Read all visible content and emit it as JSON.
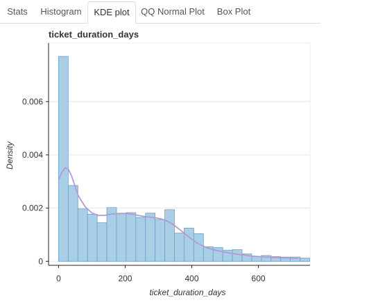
{
  "tabs": [
    {
      "label": "Stats",
      "active": false
    },
    {
      "label": "Histogram",
      "active": false
    },
    {
      "label": "KDE plot",
      "active": true
    },
    {
      "label": "QQ Normal Plot",
      "active": false
    },
    {
      "label": "Box Plot",
      "active": false
    }
  ],
  "colors": {
    "bar_fill": "#a9cfe6",
    "bar_stroke": "#6a9fcb",
    "kde_line": "#b39ad3",
    "grid": "#e6e6e6"
  },
  "chart_data": {
    "type": "bar",
    "title": "ticket_duration_days",
    "xlabel": "ticket_duration_days",
    "ylabel": "Density",
    "xlim": [
      -30,
      755
    ],
    "ylim": [
      -0.00015,
      0.0082
    ],
    "xticks": [
      0,
      200,
      400,
      600
    ],
    "yticks": [
      0,
      0.002,
      0.004,
      0.006
    ],
    "ytick_labels": [
      "0",
      "0.002",
      "0.004",
      "0.006"
    ],
    "grid": true,
    "bin_width": 29,
    "bin_start": 0,
    "values": [
      0.0077,
      0.00285,
      0.00197,
      0.00177,
      0.00145,
      0.00202,
      0.0018,
      0.00183,
      0.00165,
      0.00181,
      0.00157,
      0.00194,
      0.00106,
      0.00125,
      0.00104,
      0.00055,
      0.00052,
      0.00042,
      0.00044,
      0.00028,
      0.00018,
      0.00022,
      0.00018,
      0.00016,
      0.00016,
      0.00012
    ],
    "kde": {
      "x": [
        0,
        10,
        20,
        30,
        40,
        50,
        60,
        80,
        100,
        120,
        140,
        160,
        180,
        200,
        220,
        240,
        260,
        280,
        300,
        320,
        340,
        360,
        380,
        400,
        420,
        440,
        460,
        480,
        500,
        520,
        540,
        560,
        580,
        600,
        620,
        640,
        660,
        680,
        700,
        720
      ],
      "y": [
        0.00305,
        0.00335,
        0.00352,
        0.00345,
        0.00318,
        0.0028,
        0.00245,
        0.00205,
        0.00182,
        0.00172,
        0.00173,
        0.00178,
        0.0018,
        0.0018,
        0.00177,
        0.00172,
        0.00168,
        0.00165,
        0.00162,
        0.00155,
        0.00142,
        0.00123,
        0.00103,
        0.00083,
        0.00066,
        0.00054,
        0.00045,
        0.00039,
        0.00034,
        0.0003,
        0.00026,
        0.00023,
        0.0002,
        0.00018,
        0.00016,
        0.00015,
        0.00014,
        0.00013,
        0.00012,
        0.00011
      ]
    }
  }
}
